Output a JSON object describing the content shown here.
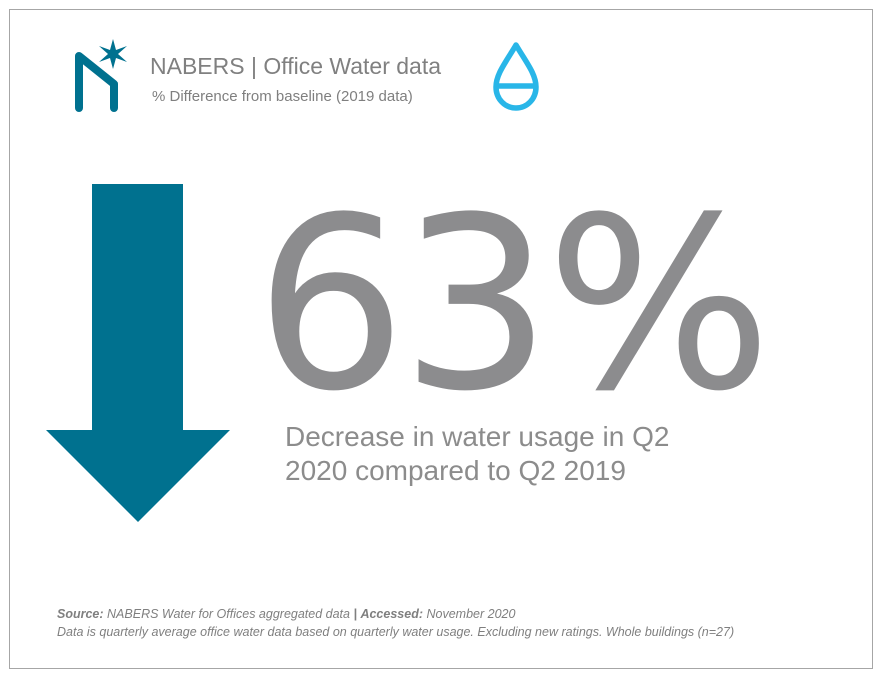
{
  "header": {
    "title": "NABERS | Office Water data",
    "subtitle": "% Difference from baseline (2019 data)"
  },
  "icons": {
    "logo": "nabers-logo-icon",
    "drop": "water-drop-icon",
    "arrow": "down-arrow-icon"
  },
  "stat": {
    "value": "63%",
    "caption": "Decrease in water usage in Q2 2020 compared to Q2 2019"
  },
  "footer": {
    "source_label": "Source:",
    "source_text": "NABERS Water for Offices aggregated data",
    "separator": "|",
    "accessed_label": "Accessed:",
    "accessed_text": "November 2020",
    "note": "Data is quarterly average office water data based on quarterly water usage. Excluding new ratings. Whole buildings (n=27)"
  },
  "colors": {
    "brand_teal": "#00718f",
    "drop_cyan": "#29b6e8",
    "text_grey": "#8c8c8e",
    "border": "#a6a6a6"
  }
}
